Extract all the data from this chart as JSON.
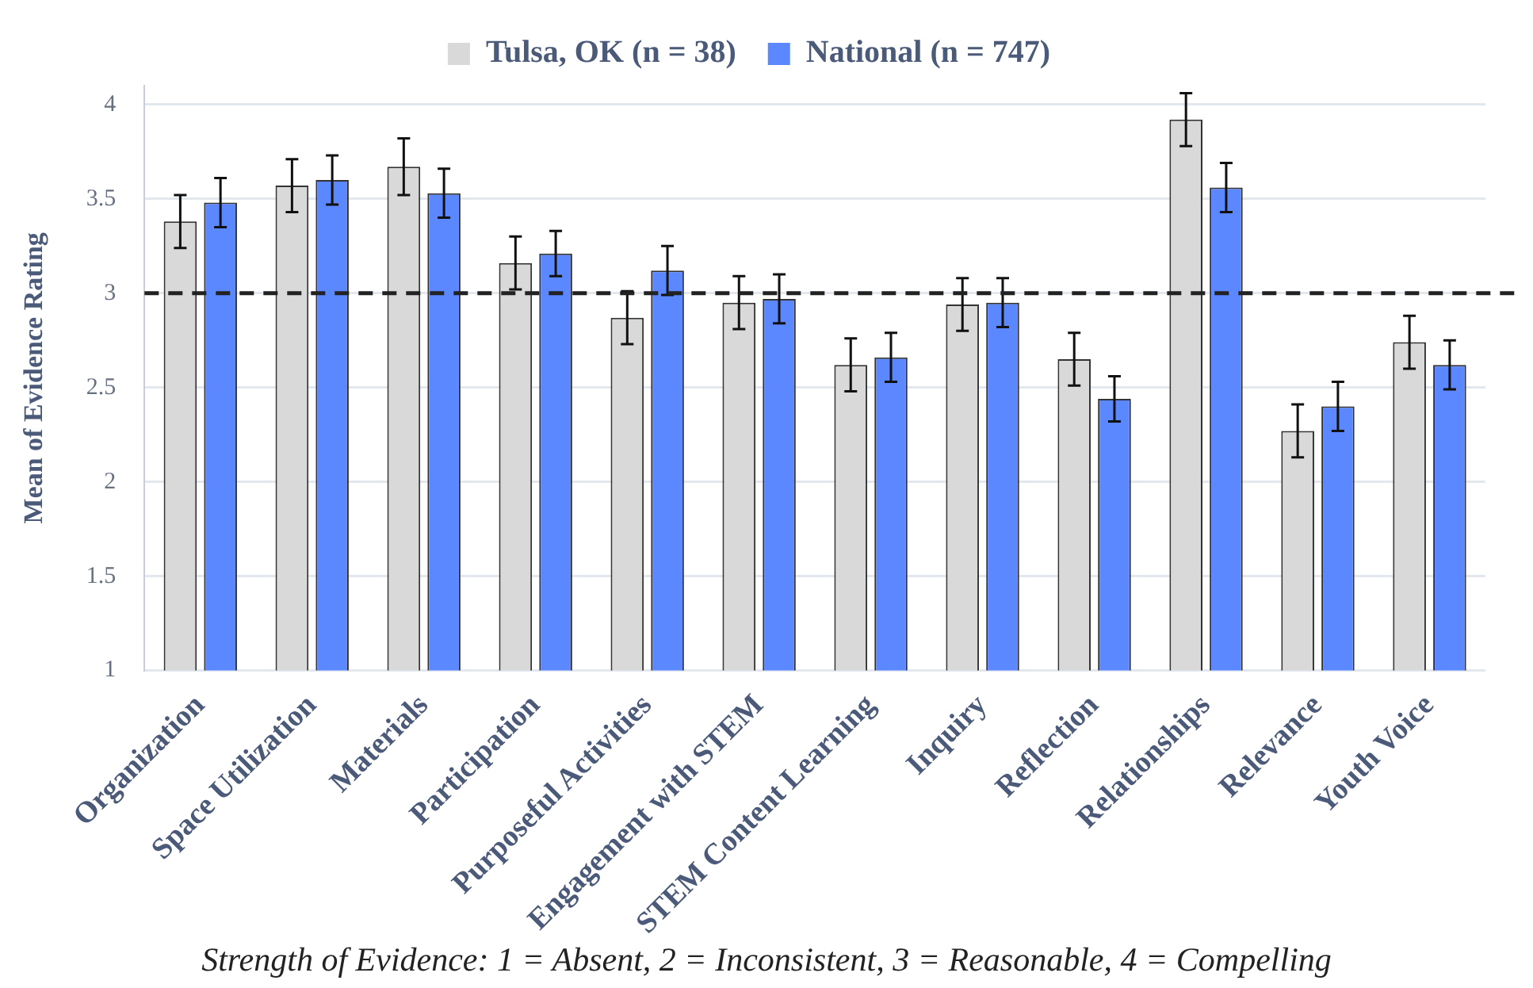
{
  "chart_data": {
    "type": "bar",
    "ylabel": "Mean of Evidence Rating",
    "categories": [
      "Organization",
      "Space Utilization",
      "Materials",
      "Participation",
      "Purposeful Activities",
      "Engagement with STEM",
      "STEM Content Learning",
      "Inquiry",
      "Reflection",
      "Relationships",
      "Relevance",
      "Youth Voice"
    ],
    "series": [
      {
        "name": "Tulsa, OK (n = 38)",
        "color": "#d9d9d9",
        "values": [
          3.38,
          3.57,
          3.67,
          3.16,
          2.87,
          2.95,
          2.62,
          2.94,
          2.65,
          3.92,
          2.27,
          2.74
        ],
        "errors": [
          0.14,
          0.14,
          0.15,
          0.14,
          0.14,
          0.14,
          0.14,
          0.14,
          0.14,
          0.14,
          0.14,
          0.14
        ]
      },
      {
        "name": "National (n = 747)",
        "color": "#5b87ff",
        "values": [
          3.48,
          3.6,
          3.53,
          3.21,
          3.12,
          2.97,
          2.66,
          2.95,
          2.44,
          3.56,
          2.4,
          2.62
        ],
        "errors": [
          0.13,
          0.13,
          0.13,
          0.12,
          0.13,
          0.13,
          0.13,
          0.13,
          0.12,
          0.13,
          0.13,
          0.13
        ]
      }
    ],
    "ylim": [
      1,
      4.1
    ],
    "yticks": [
      1,
      1.5,
      2,
      2.5,
      3,
      3.5,
      4
    ],
    "grid": "y",
    "legend": "top",
    "ref_lines": [
      {
        "axis": "y",
        "value": 3,
        "color": "#222222",
        "line_style": "dashed"
      }
    ],
    "annotations": [
      "Strength of Evidence: 1 = Absent, 2 = Inconsistent, 3 = Reasonable, 4 = Compelling"
    ]
  }
}
